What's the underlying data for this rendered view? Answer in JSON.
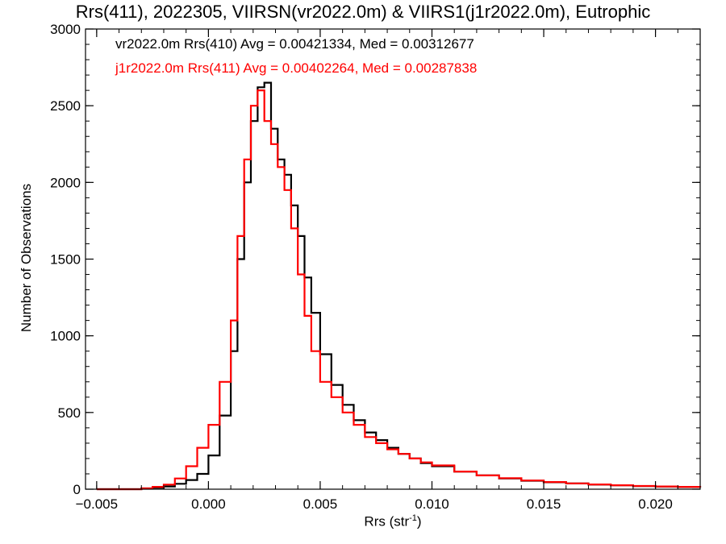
{
  "title": "Rrs(411), 2022305, VIIRSN(vr2022.0m) & VIIRS1(j1r2022.0m), Eutrophic",
  "chart_data": {
    "type": "line",
    "title": "Rrs(411), 2022305, VIIRSN(vr2022.0m) & VIIRS1(j1r2022.0m), Eutrophic",
    "xlabel": "Rrs (str",
    "xlabel_sup": "-1",
    "xlabel_tail": ")",
    "ylabel": "Number of Observations",
    "xlim": [
      -0.0055,
      0.022
    ],
    "ylim": [
      0,
      3000
    ],
    "xticks": [
      -0.005,
      0.0,
      0.005,
      0.01,
      0.015,
      0.02
    ],
    "xtick_labels": [
      "−0.005",
      "0.000",
      "0.005",
      "0.010",
      "0.015",
      "0.020"
    ],
    "yticks": [
      0,
      500,
      1000,
      1500,
      2000,
      2500,
      3000
    ],
    "ytick_labels": [
      "0",
      "500",
      "1000",
      "1500",
      "2000",
      "2500",
      "3000"
    ],
    "grid": false,
    "series": [
      {
        "name": "vr2022.0m Rrs(410) Avg = 0.00421334, Med = 0.00312677",
        "color": "#000000",
        "x": [
          -0.005,
          -0.004,
          -0.003,
          -0.0025,
          -0.002,
          -0.0015,
          -0.001,
          -0.0005,
          0.0,
          0.0005,
          0.001,
          0.0013,
          0.0016,
          0.0019,
          0.0022,
          0.0025,
          0.0028,
          0.0031,
          0.0034,
          0.0037,
          0.004,
          0.0043,
          0.0046,
          0.005,
          0.0055,
          0.006,
          0.0065,
          0.007,
          0.0075,
          0.008,
          0.0085,
          0.009,
          0.0095,
          0.01,
          0.011,
          0.012,
          0.013,
          0.014,
          0.015,
          0.016,
          0.017,
          0.018,
          0.019,
          0.02,
          0.021,
          0.022
        ],
        "values": [
          0,
          0,
          5,
          10,
          18,
          35,
          60,
          100,
          220,
          480,
          900,
          1500,
          2000,
          2400,
          2620,
          2650,
          2350,
          2150,
          2050,
          1850,
          1650,
          1380,
          1150,
          880,
          680,
          550,
          450,
          370,
          320,
          270,
          230,
          200,
          170,
          150,
          115,
          90,
          70,
          55,
          45,
          38,
          30,
          25,
          20,
          17,
          14,
          12
        ]
      },
      {
        "name": "j1r2022.0m Rrs(411) Avg = 0.00402264, Med = 0.00287838",
        "color": "#ff0000",
        "x": [
          -0.005,
          -0.004,
          -0.003,
          -0.0025,
          -0.002,
          -0.0015,
          -0.001,
          -0.0005,
          0.0,
          0.0005,
          0.001,
          0.0013,
          0.0016,
          0.0019,
          0.0022,
          0.0025,
          0.0028,
          0.0031,
          0.0034,
          0.0037,
          0.004,
          0.0043,
          0.0046,
          0.005,
          0.0055,
          0.006,
          0.0065,
          0.007,
          0.0075,
          0.008,
          0.0085,
          0.009,
          0.0095,
          0.01,
          0.011,
          0.012,
          0.013,
          0.014,
          0.015,
          0.016,
          0.017,
          0.018,
          0.019,
          0.02,
          0.021,
          0.022
        ],
        "values": [
          0,
          0,
          5,
          15,
          30,
          70,
          150,
          270,
          420,
          700,
          1100,
          1650,
          2150,
          2500,
          2600,
          2400,
          2250,
          2100,
          1950,
          1700,
          1400,
          1130,
          900,
          700,
          600,
          500,
          420,
          340,
          300,
          260,
          230,
          200,
          175,
          155,
          115,
          90,
          72,
          57,
          47,
          38,
          31,
          26,
          21,
          18,
          15,
          12
        ]
      }
    ]
  }
}
